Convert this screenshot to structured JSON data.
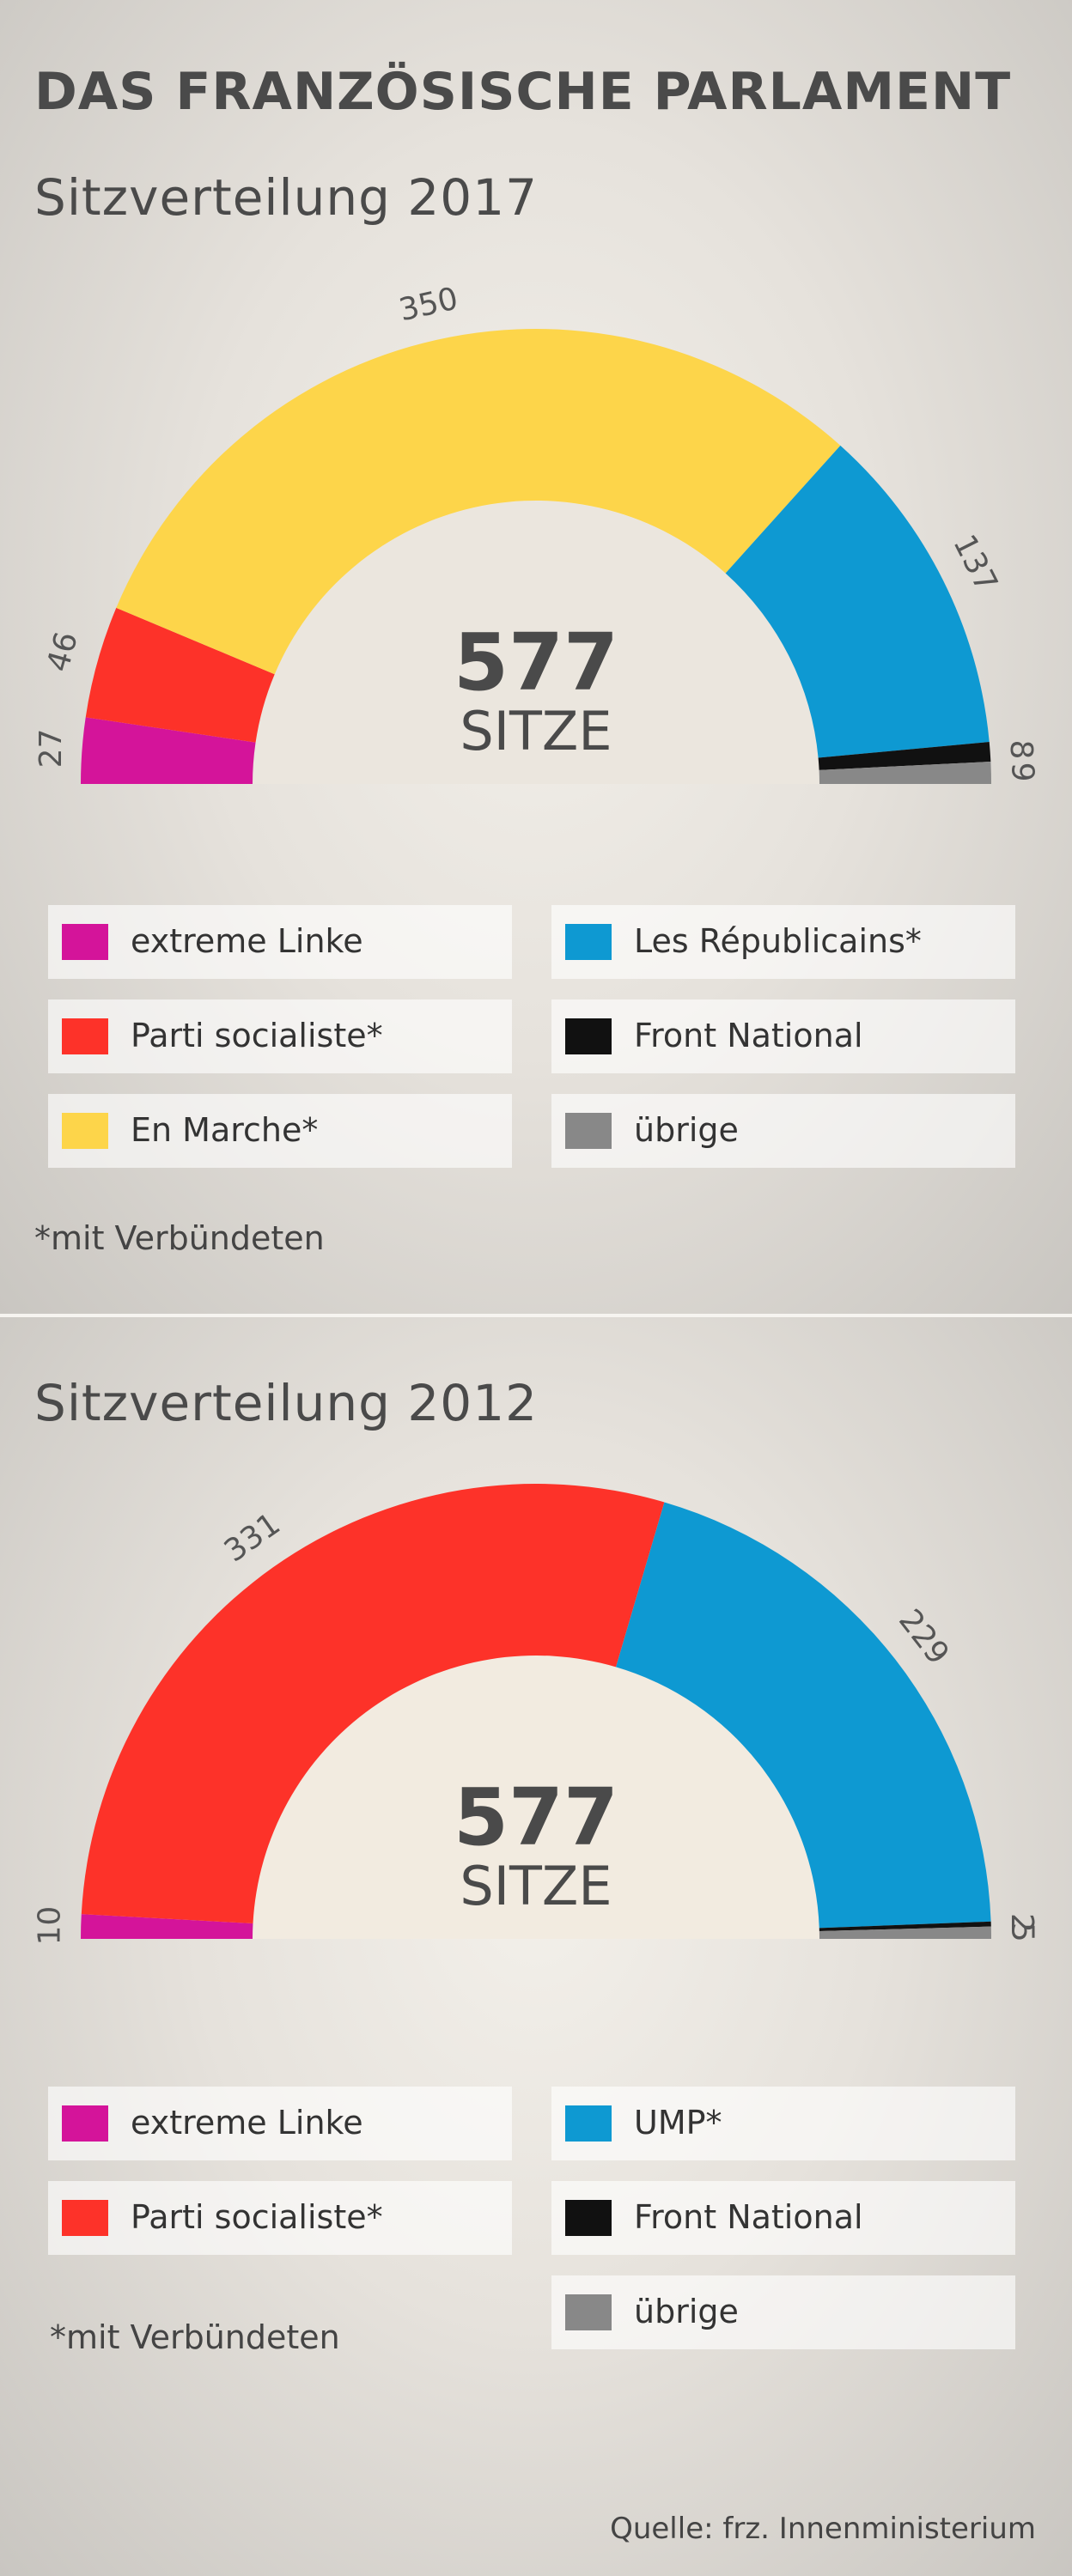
{
  "title": "DAS FRANZÖSISCHE PARLAMENT",
  "footnote": "*mit Verbündeten",
  "source": "Quelle: frz. Innenministerium",
  "chart_data": [
    {
      "type": "pie",
      "title": "Sitzverteilung 2017",
      "total": "577",
      "total_label": "SITZE",
      "categories": [
        "extreme Linke",
        "Parti socialiste*",
        "En Marche*",
        "Les Républicains*",
        "Front National",
        "übrige"
      ],
      "values": [
        27,
        46,
        350,
        137,
        8,
        9
      ],
      "value_labels": [
        "27",
        "46",
        "350",
        "137",
        "8",
        "9"
      ],
      "colors": [
        "#d4149a",
        "#fd3229",
        "#fdd54a",
        "#0e99d2",
        "#111111",
        "#888888"
      ]
    },
    {
      "type": "pie",
      "title": "Sitzverteilung 2012",
      "total": "577",
      "total_label": "SITZE",
      "categories": [
        "extreme Linke",
        "Parti socialiste*",
        "UMP*",
        "Front National",
        "übrige"
      ],
      "values": [
        10,
        331,
        229,
        2,
        5
      ],
      "value_labels": [
        "10",
        "331",
        "229",
        "2",
        "5"
      ],
      "colors": [
        "#d4149a",
        "#fd3229",
        "#0e99d2",
        "#111111",
        "#888888"
      ]
    }
  ]
}
